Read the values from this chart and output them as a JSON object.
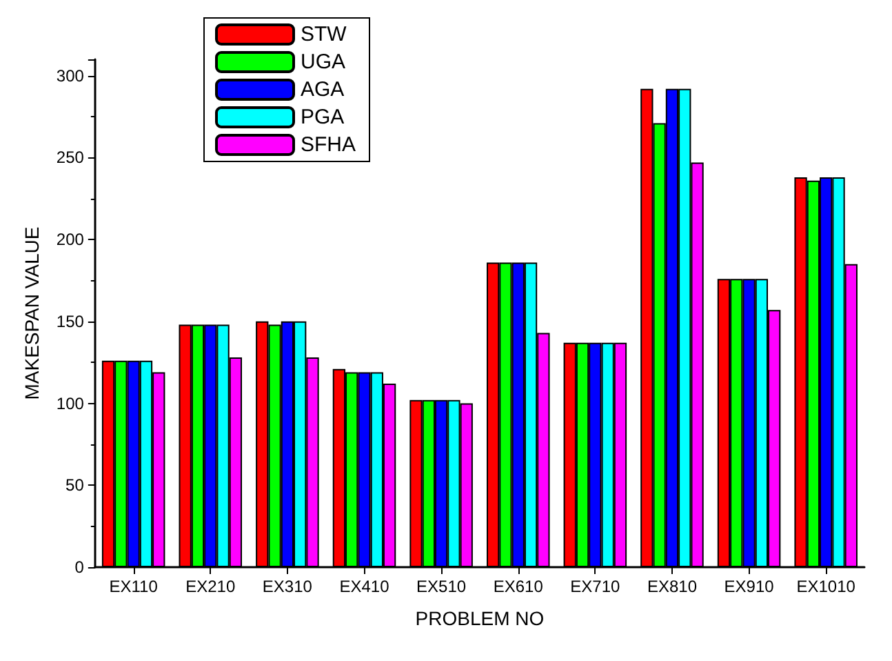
{
  "chart_data": {
    "type": "bar",
    "xlabel": "PROBLEM NO",
    "ylabel": "MAKESPAN VALUE",
    "categories": [
      "EX110",
      "EX210",
      "EX310",
      "EX410",
      "EX510",
      "EX610",
      "EX710",
      "EX810",
      "EX910",
      "EX1010"
    ],
    "series": [
      {
        "name": "STW",
        "color": "#ff0000",
        "values": [
          126,
          148,
          150,
          121,
          102,
          186,
          137,
          292,
          176,
          238
        ]
      },
      {
        "name": "UGA",
        "color": "#00ff00",
        "values": [
          126,
          148,
          148,
          119,
          102,
          186,
          137,
          271,
          176,
          236
        ]
      },
      {
        "name": "AGA",
        "color": "#0000ff",
        "values": [
          126,
          148,
          150,
          119,
          102,
          186,
          137,
          292,
          176,
          238
        ]
      },
      {
        "name": "PGA",
        "color": "#00ffff",
        "values": [
          126,
          148,
          150,
          119,
          102,
          186,
          137,
          292,
          176,
          238
        ]
      },
      {
        "name": "SFHA",
        "color": "#ff00ff",
        "values": [
          119,
          128,
          128,
          112,
          100,
          143,
          137,
          247,
          157,
          185
        ]
      }
    ],
    "ylim": [
      0,
      310
    ],
    "yticks": [
      0,
      50,
      100,
      150,
      200,
      250,
      300
    ],
    "grid": false,
    "legend": "top"
  }
}
